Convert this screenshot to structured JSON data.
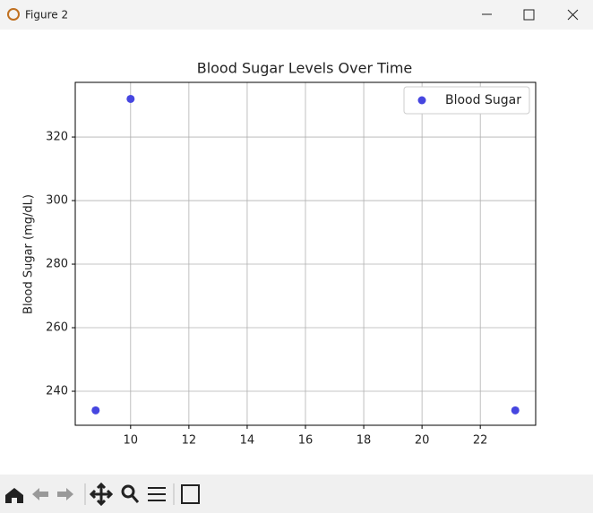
{
  "window": {
    "title": "Figure 2"
  },
  "chart_data": {
    "type": "scatter",
    "title": "Blood Sugar Levels Over Time",
    "ylabel": "Blood Sugar (mg/dL)",
    "series": [
      {
        "name": "Blood Sugar",
        "color": "#4646e0",
        "x": [
          8.8,
          10.0,
          23.2
        ],
        "values": [
          234,
          332,
          234
        ]
      }
    ],
    "xlim": [
      8.1,
      23.9
    ],
    "ylim": [
      229.3,
      337.2
    ],
    "xticks": [
      10,
      12,
      14,
      16,
      18,
      20,
      22
    ],
    "yticks": [
      240,
      260,
      280,
      300,
      320
    ],
    "grid": true,
    "legend": "upper right"
  }
}
